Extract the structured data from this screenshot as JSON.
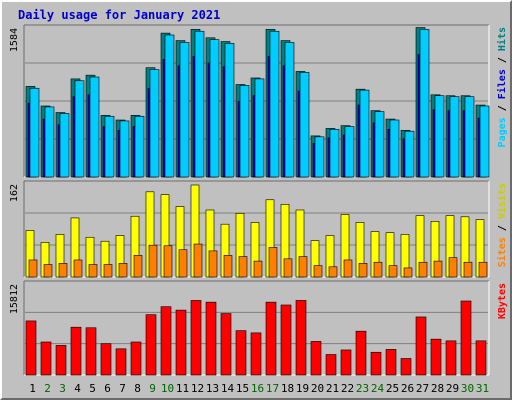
{
  "chart_data": {
    "type": "bar",
    "title": "Daily usage for January 2021",
    "categories": [
      "1",
      "2",
      "3",
      "4",
      "5",
      "6",
      "7",
      "8",
      "9",
      "10",
      "11",
      "12",
      "13",
      "14",
      "15",
      "16",
      "17",
      "18",
      "19",
      "20",
      "21",
      "22",
      "23",
      "24",
      "25",
      "26",
      "27",
      "28",
      "29",
      "30",
      "31"
    ],
    "weekend_days": [
      "2",
      "3",
      "9",
      "10",
      "16",
      "17",
      "23",
      "24",
      "30",
      "31"
    ],
    "colors": {
      "background": "#c0c0c0",
      "title": "#0000cc",
      "weekday_label": "#000000",
      "weekend_label": "#006600",
      "hits": "#00ccff",
      "files": "#008080",
      "pages": "#00ccff",
      "visits": "#ffff00",
      "sites": "#ff8000",
      "kbytes": "#ff0000",
      "slash": "#000000"
    },
    "panels": [
      {
        "id": "hits-files-pages",
        "ymax_label": "1584",
        "ylim": [
          0,
          1584
        ],
        "right_label_parts": [
          {
            "text": "Pages",
            "color": "#00ccff"
          },
          {
            "text": " / ",
            "color": "#000000"
          },
          {
            "text": "Files",
            "color": "#0000cc"
          },
          {
            "text": " / ",
            "color": "#000000"
          },
          {
            "text": "Hits",
            "color": "#008080"
          }
        ],
        "series": [
          {
            "name": "Hits",
            "color": "#008080",
            "values": [
              970,
              760,
              690,
              1050,
              1090,
              660,
              610,
              660,
              1170,
              1540,
              1460,
              1580,
              1490,
              1450,
              990,
              1060,
              1580,
              1460,
              1130,
              440,
              520,
              550,
              940,
              710,
              620,
              500,
              1600,
              880,
              870,
              870,
              770
            ]
          },
          {
            "name": "Files",
            "color": "#0000cc",
            "values": [
              790,
              620,
              560,
              860,
              880,
              540,
              500,
              540,
              950,
              1260,
              1190,
              1290,
              1220,
              1180,
              810,
              870,
              1290,
              1190,
              920,
              360,
              420,
              450,
              770,
              580,
              510,
              410,
              1310,
              720,
              710,
              710,
              630
            ]
          },
          {
            "name": "Pages",
            "color": "#00ccff",
            "values": [
              950,
              750,
              680,
              1030,
              1070,
              650,
              600,
              650,
              1150,
              1520,
              1440,
              1560,
              1470,
              1430,
              980,
              1050,
              1560,
              1440,
              1120,
              430,
              510,
              540,
              930,
              700,
              610,
              490,
              1580,
              870,
              860,
              860,
              760
            ]
          }
        ]
      },
      {
        "id": "visits-sites",
        "ymax_label": "162",
        "ylim": [
          0,
          162
        ],
        "right_label_parts": [
          {
            "text": "Sites",
            "color": "#ff8000"
          },
          {
            "text": " / ",
            "color": "#000000"
          },
          {
            "text": "Visits",
            "color": "#cccc00"
          }
        ],
        "series": [
          {
            "name": "Visits",
            "color": "#ffff00",
            "values": [
              82,
              61,
              75,
              104,
              70,
              63,
              73,
              107,
              150,
              145,
              124,
              162,
              118,
              93,
              112,
              96,
              136,
              128,
              118,
              64,
              73,
              110,
              96,
              80,
              78,
              75,
              108,
              98,
              108,
              106,
              101
            ]
          },
          {
            "name": "Sites",
            "color": "#ff8000",
            "values": [
              30,
              22,
              24,
              30,
              22,
              22,
              24,
              38,
              56,
              55,
              48,
              58,
              46,
              38,
              36,
              28,
              52,
              32,
              36,
              20,
              18,
              30,
              24,
              26,
              20,
              16,
              26,
              28,
              34,
              26,
              26
            ]
          }
        ]
      },
      {
        "id": "kbytes",
        "ymax_label": "15812",
        "ylim": [
          0,
          15812
        ],
        "right_label_parts": [
          {
            "text": "KBytes",
            "color": "#ff0000"
          }
        ],
        "series": [
          {
            "name": "KBytes",
            "color": "#ff0000",
            "values": [
              9500,
              5800,
              5200,
              8400,
              8300,
              5500,
              4600,
              5800,
              10600,
              12000,
              11400,
              13100,
              12800,
              10800,
              7800,
              7400,
              12800,
              12300,
              13100,
              5900,
              3600,
              4400,
              7700,
              4000,
              4500,
              2900,
              10200,
              6300,
              6000,
              13000,
              6000
            ]
          }
        ]
      }
    ]
  }
}
